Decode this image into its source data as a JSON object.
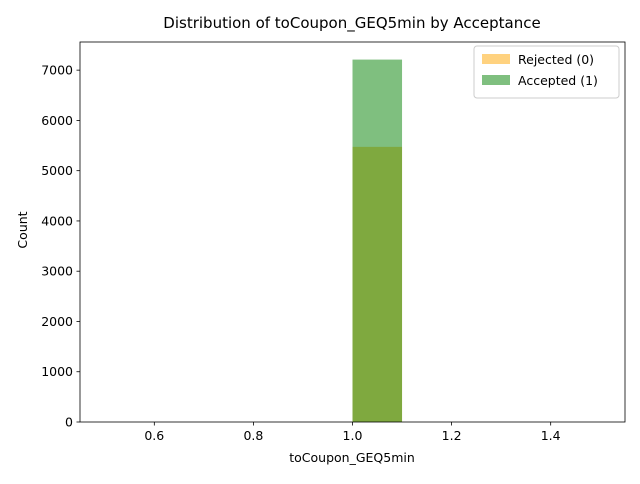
{
  "chart_data": {
    "type": "bar",
    "chart_kind": "histogram",
    "title": "Distribution of toCoupon_GEQ5min by Acceptance",
    "xlabel": "toCoupon_GEQ5min",
    "ylabel": "Count",
    "xlim": [
      0.45,
      1.55
    ],
    "ylim": [
      0,
      7560
    ],
    "x_ticks": [
      0.6,
      0.8,
      1.0,
      1.2,
      1.4
    ],
    "x_tick_labels": [
      "0.6",
      "0.8",
      "1.0",
      "1.2",
      "1.4"
    ],
    "y_ticks": [
      0,
      1000,
      2000,
      3000,
      4000,
      5000,
      6000,
      7000
    ],
    "y_tick_labels": [
      "0",
      "1000",
      "2000",
      "3000",
      "4000",
      "5000",
      "6000",
      "7000"
    ],
    "grid": false,
    "legend_position": "top-right",
    "series": [
      {
        "name": "Rejected (0)",
        "color": "#ffa500",
        "opacity": 0.5,
        "bins": [
          {
            "x0": 1.0,
            "x1": 1.1,
            "count": 5474
          }
        ]
      },
      {
        "name": "Accepted (1)",
        "color": "#008000",
        "opacity": 0.5,
        "bins": [
          {
            "x0": 1.0,
            "x1": 1.1,
            "count": 7210
          }
        ]
      }
    ]
  }
}
